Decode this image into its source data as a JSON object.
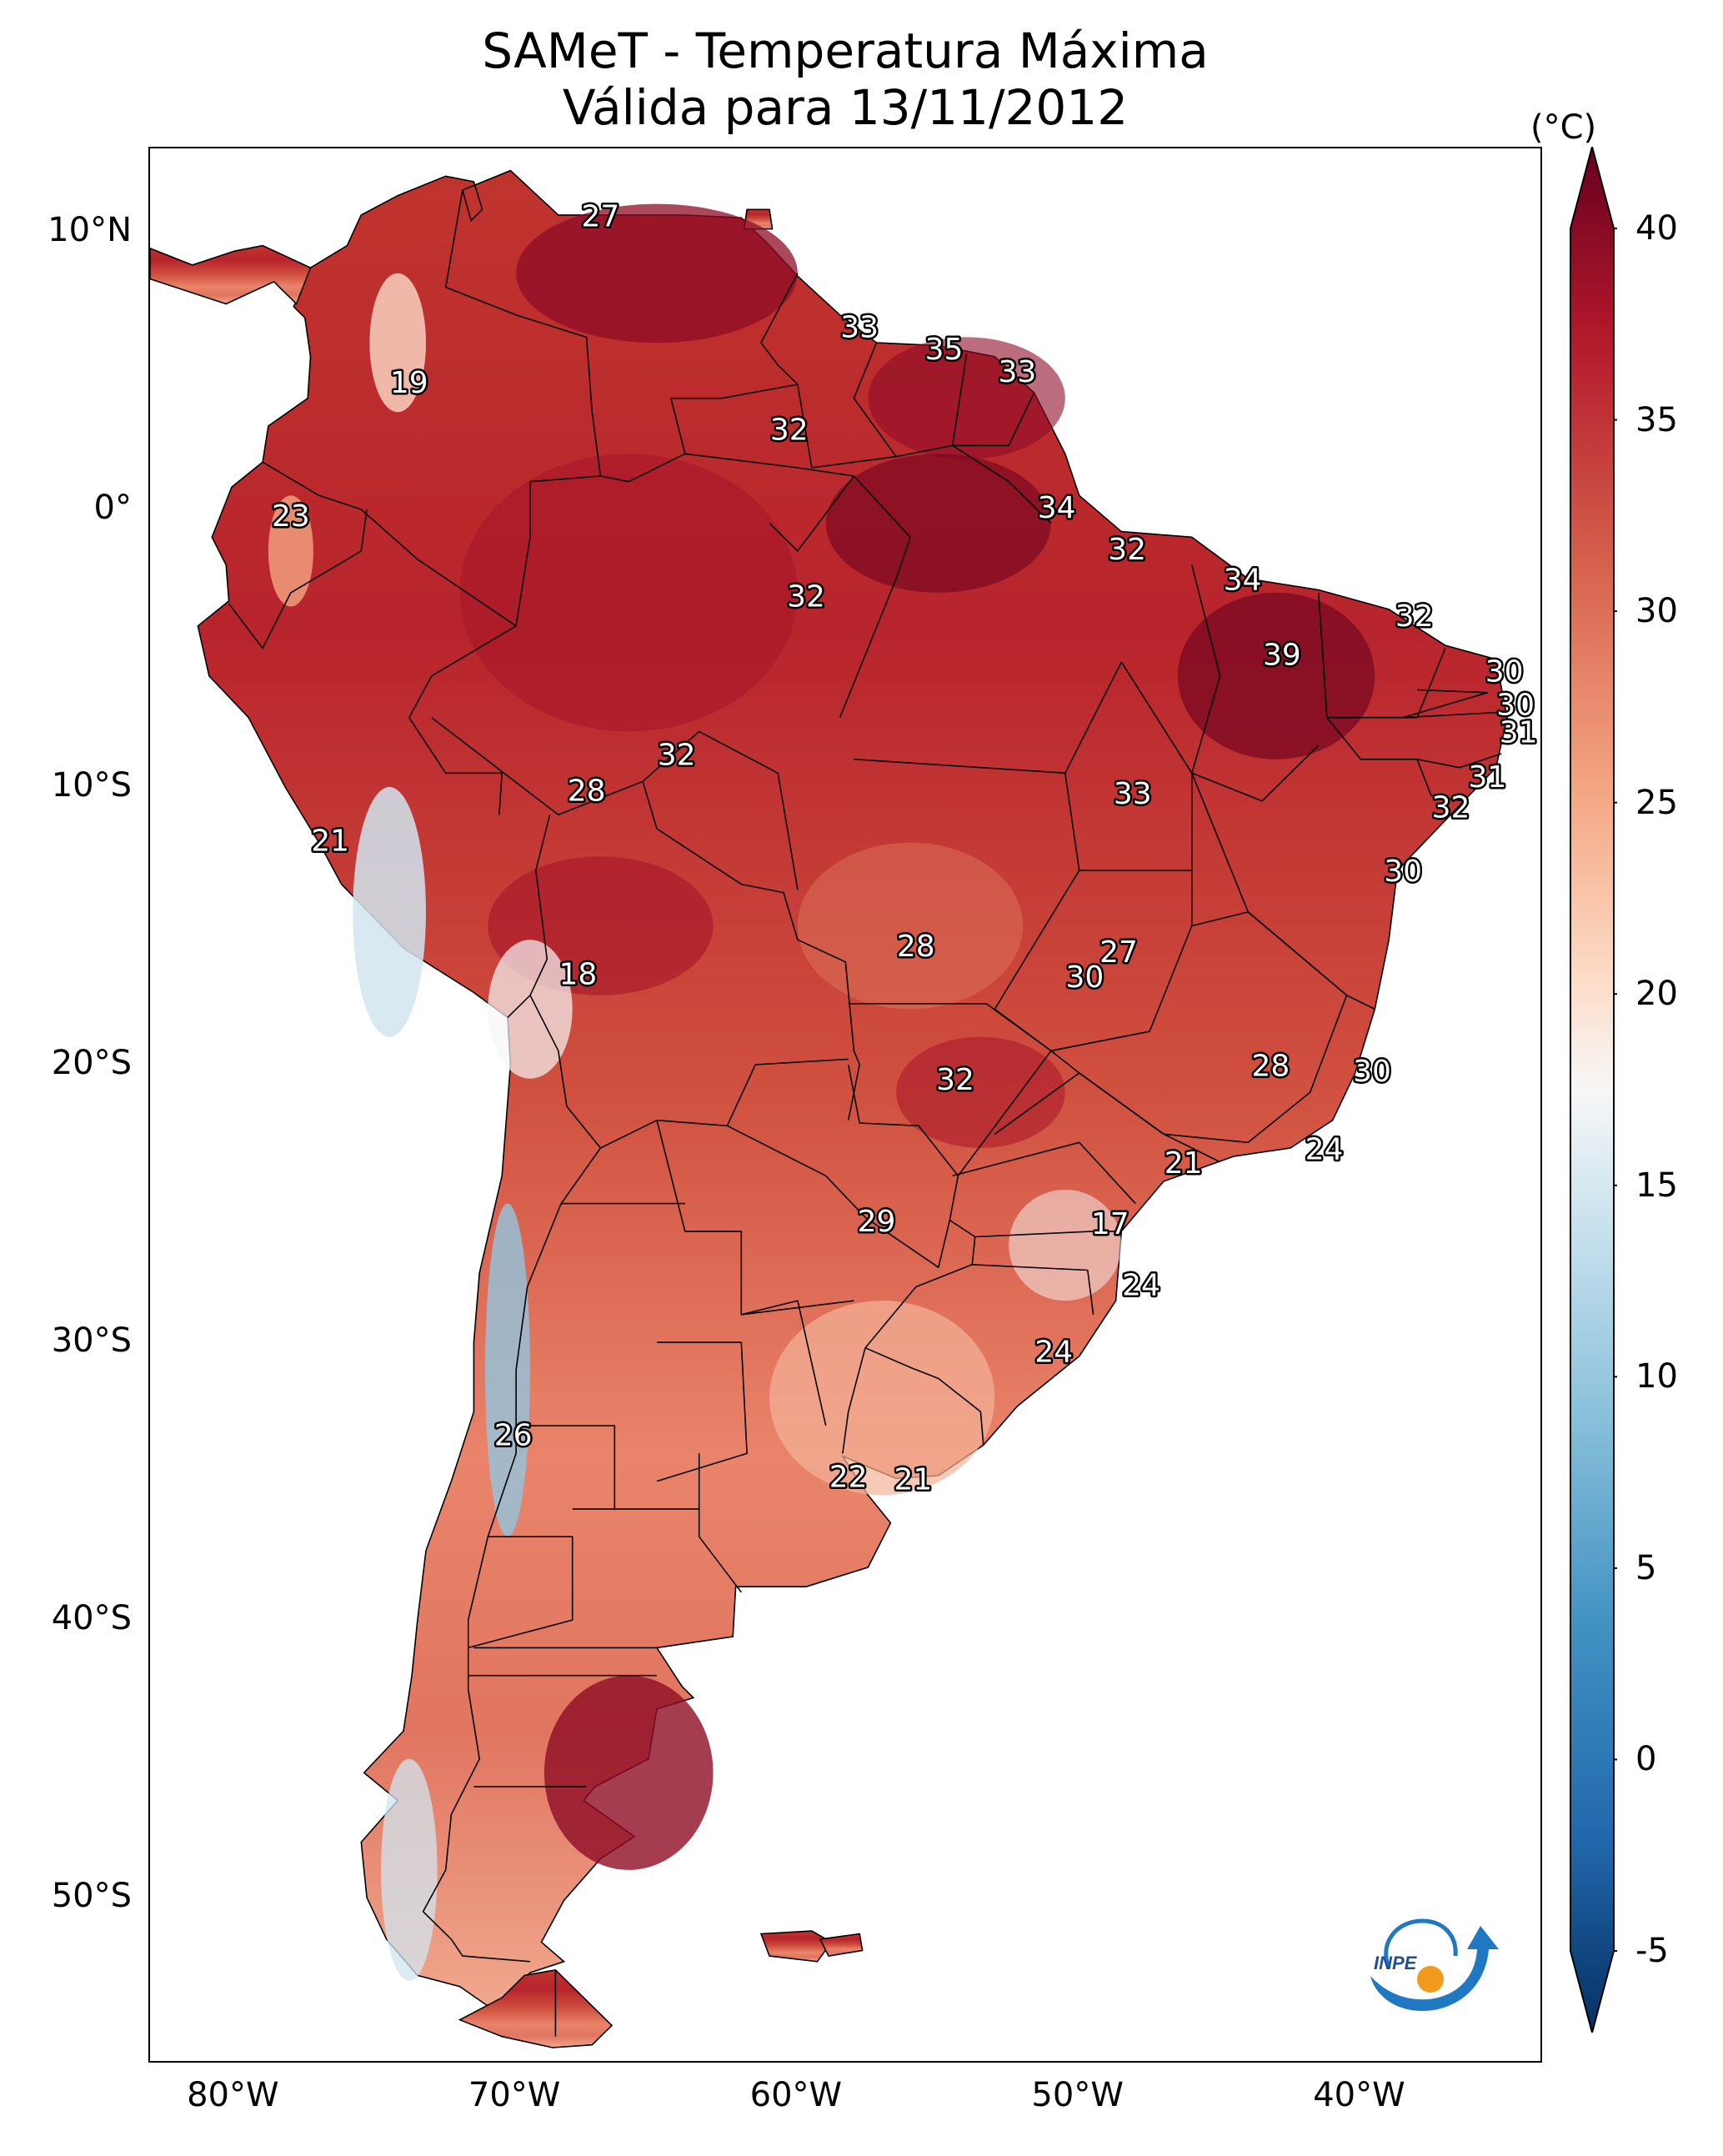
{
  "title": {
    "line1": "SAMeT - Temperatura Máxima",
    "line2": "Válida para 13/11/2012"
  },
  "map": {
    "lat_ticks": [
      "10°N",
      "0°",
      "10°S",
      "20°S",
      "30°S",
      "40°S",
      "50°S"
    ],
    "lon_ticks": [
      "80°W",
      "70°W",
      "60°W",
      "50°W",
      "40°W"
    ],
    "lat_range": [
      -56,
      13
    ],
    "lon_range": [
      -83,
      -33.5
    ]
  },
  "labels": [
    {
      "text": "27",
      "lon": -67,
      "lat": 10.5
    },
    {
      "text": "19",
      "lon": -73.8,
      "lat": 4.5
    },
    {
      "text": "33",
      "lon": -57.8,
      "lat": 6.5
    },
    {
      "text": "35",
      "lon": -54.8,
      "lat": 5.7
    },
    {
      "text": "33",
      "lon": -52.2,
      "lat": 4.9
    },
    {
      "text": "32",
      "lon": -60.3,
      "lat": 2.8
    },
    {
      "text": "23",
      "lon": -78,
      "lat": -0.3
    },
    {
      "text": "34",
      "lon": -50.8,
      "lat": 0
    },
    {
      "text": "32",
      "lon": -48.3,
      "lat": -1.5
    },
    {
      "text": "32",
      "lon": -59.7,
      "lat": -3.2
    },
    {
      "text": "34",
      "lon": -44.2,
      "lat": -2.6
    },
    {
      "text": "32",
      "lon": -38.1,
      "lat": -3.9
    },
    {
      "text": "39",
      "lon": -42.8,
      "lat": -5.3
    },
    {
      "text": "30",
      "lon": -34.9,
      "lat": -5.9
    },
    {
      "text": "30",
      "lon": -34.5,
      "lat": -7.1
    },
    {
      "text": "31",
      "lon": -34.4,
      "lat": -8.1
    },
    {
      "text": "31",
      "lon": -35.5,
      "lat": -9.7
    },
    {
      "text": "32",
      "lon": -36.8,
      "lat": -10.8
    },
    {
      "text": "32",
      "lon": -64.3,
      "lat": -8.9
    },
    {
      "text": "28",
      "lon": -67.5,
      "lat": -10.2
    },
    {
      "text": "33",
      "lon": -48.1,
      "lat": -10.3
    },
    {
      "text": "21",
      "lon": -76.6,
      "lat": -12
    },
    {
      "text": "30",
      "lon": -38.5,
      "lat": -13.1
    },
    {
      "text": "28",
      "lon": -55.8,
      "lat": -15.8
    },
    {
      "text": "27",
      "lon": -48.6,
      "lat": -16
    },
    {
      "text": "30",
      "lon": -49.8,
      "lat": -16.9
    },
    {
      "text": "18",
      "lon": -67.8,
      "lat": -16.8
    },
    {
      "text": "28",
      "lon": -43.2,
      "lat": -20.1
    },
    {
      "text": "30",
      "lon": -39.6,
      "lat": -20.3
    },
    {
      "text": "32",
      "lon": -54.4,
      "lat": -20.6
    },
    {
      "text": "24",
      "lon": -41.3,
      "lat": -23.1
    },
    {
      "text": "21",
      "lon": -46.3,
      "lat": -23.6
    },
    {
      "text": "17",
      "lon": -48.9,
      "lat": -25.8
    },
    {
      "text": "29",
      "lon": -57.2,
      "lat": -25.7
    },
    {
      "text": "24",
      "lon": -47.8,
      "lat": -28
    },
    {
      "text": "24",
      "lon": -50.9,
      "lat": -30.4
    },
    {
      "text": "26",
      "lon": -70.1,
      "lat": -33.4
    },
    {
      "text": "22",
      "lon": -58.2,
      "lat": -34.9
    },
    {
      "text": "21",
      "lon": -55.9,
      "lat": -35
    }
  ],
  "colorbar": {
    "unit": "(°C)",
    "ticks": [
      "40",
      "35",
      "30",
      "25",
      "20",
      "15",
      "10",
      "5",
      "0",
      "-5"
    ],
    "range": [
      -5,
      40
    ],
    "colors": {
      "dark_red": "#67001f",
      "red": "#b2182b",
      "light_red": "#d6604d",
      "salmon": "#f4a582",
      "pale": "#fddbc7",
      "white": "#f7f7f7",
      "pale_blue": "#d1e5f0",
      "light_blue": "#92c5de",
      "blue": "#4393c3",
      "mid_blue": "#2166ac",
      "dark_blue": "#053061"
    }
  },
  "logo": {
    "text": "INPE"
  }
}
